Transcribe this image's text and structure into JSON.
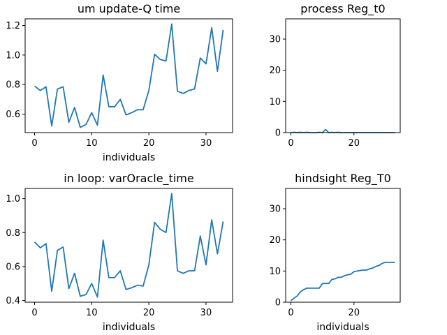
{
  "chart_data": [
    {
      "type": "line",
      "title": "um update-Q time",
      "xlabel": "individuals",
      "ylabel": "",
      "xlim": [
        -1.65,
        34.65
      ],
      "ylim": [
        0.475,
        1.245
      ],
      "xticks": [
        0,
        10,
        20,
        30
      ],
      "yticks": [
        0.6,
        0.8,
        1.0,
        1.2
      ],
      "ytick_labels": [
        "0.6",
        "0.8",
        "1.0",
        "1.2"
      ],
      "grid": false,
      "color": "#1f77b4",
      "series": [
        {
          "x": [
            0,
            1,
            2,
            3,
            4,
            5,
            6,
            7,
            8,
            9,
            10,
            11,
            12,
            13,
            14,
            15,
            16,
            17,
            18,
            19,
            20,
            21,
            22,
            23,
            24,
            25,
            26,
            27,
            28,
            29,
            30,
            31,
            32,
            33
          ],
          "values": [
            0.79,
            0.76,
            0.785,
            0.52,
            0.77,
            0.785,
            0.545,
            0.645,
            0.51,
            0.53,
            0.61,
            0.525,
            0.865,
            0.65,
            0.65,
            0.7,
            0.595,
            0.61,
            0.63,
            0.63,
            0.76,
            1.005,
            0.97,
            0.96,
            1.21,
            0.755,
            0.74,
            0.76,
            0.77,
            0.98,
            0.94,
            1.185,
            0.89,
            1.17
          ]
        }
      ]
    },
    {
      "type": "line",
      "title": "process Reg_t0",
      "xlabel": "",
      "ylabel": "",
      "xlim": [
        -1.65,
        34.65
      ],
      "ylim": [
        0,
        36.5
      ],
      "xticks": [
        0,
        20
      ],
      "yticks": [
        0,
        10,
        20,
        30
      ],
      "ytick_labels": [
        "0",
        "10",
        "20",
        "30"
      ],
      "grid": false,
      "color": "#1f77b4",
      "series": [
        {
          "x": [
            0,
            1,
            2,
            3,
            4,
            5,
            6,
            7,
            8,
            9,
            10,
            11,
            12,
            13,
            14,
            15,
            16,
            17,
            18,
            19,
            20,
            21,
            22,
            23,
            24,
            25,
            26,
            27,
            28,
            29,
            30,
            31,
            32,
            33
          ],
          "values": [
            0,
            0.1,
            0,
            0.1,
            0,
            0.1,
            0,
            0,
            0,
            0.1,
            0,
            1.0,
            0,
            0.1,
            0,
            0.1,
            0,
            0,
            0,
            0,
            0,
            0,
            0,
            0,
            0,
            0,
            0,
            0,
            0,
            0,
            0,
            0,
            0,
            0
          ]
        }
      ]
    },
    {
      "type": "line",
      "title": "in loop: varOracle_time",
      "xlabel": "individuals",
      "ylabel": "",
      "xlim": [
        -1.65,
        34.65
      ],
      "ylim": [
        0.39,
        1.06
      ],
      "xticks": [
        0,
        10,
        20,
        30
      ],
      "yticks": [
        0.4,
        0.6,
        0.8,
        1.0
      ],
      "ytick_labels": [
        "0.4",
        "0.6",
        "0.8",
        "1.0"
      ],
      "grid": false,
      "color": "#1f77b4",
      "series": [
        {
          "x": [
            0,
            1,
            2,
            3,
            4,
            5,
            6,
            7,
            8,
            9,
            10,
            11,
            12,
            13,
            14,
            15,
            16,
            17,
            18,
            19,
            20,
            21,
            22,
            23,
            24,
            25,
            26,
            27,
            28,
            29,
            30,
            31,
            32,
            33
          ],
          "values": [
            0.745,
            0.71,
            0.735,
            0.455,
            0.695,
            0.715,
            0.47,
            0.56,
            0.425,
            0.435,
            0.5,
            0.42,
            0.755,
            0.535,
            0.535,
            0.575,
            0.465,
            0.475,
            0.49,
            0.485,
            0.61,
            0.86,
            0.82,
            0.8,
            1.03,
            0.575,
            0.56,
            0.575,
            0.575,
            0.78,
            0.61,
            0.875,
            0.675,
            0.865
          ]
        }
      ]
    },
    {
      "type": "line",
      "title": "hindsight Reg_T0",
      "xlabel": "individuals",
      "ylabel": "",
      "xlim": [
        -1.65,
        34.65
      ],
      "ylim": [
        0,
        36.5
      ],
      "xticks": [
        0,
        20
      ],
      "yticks": [
        0,
        10,
        20,
        30
      ],
      "ytick_labels": [
        "0",
        "10",
        "20",
        "30"
      ],
      "grid": false,
      "color": "#1f77b4",
      "series": [
        {
          "x": [
            0,
            1,
            2,
            3,
            4,
            5,
            6,
            7,
            8,
            9,
            10,
            11,
            12,
            13,
            14,
            15,
            16,
            17,
            18,
            19,
            20,
            21,
            22,
            23,
            24,
            25,
            26,
            27,
            28,
            29,
            30,
            31,
            32,
            33
          ],
          "values": [
            0.5,
            1.3,
            2.0,
            3.3,
            4.0,
            4.5,
            4.5,
            4.5,
            4.5,
            4.5,
            6.0,
            6.0,
            6.0,
            7.3,
            7.5,
            8.0,
            8.0,
            8.5,
            8.8,
            9.0,
            9.8,
            10.0,
            10.2,
            10.3,
            10.3,
            10.7,
            11.0,
            11.5,
            11.8,
            12.5,
            12.8,
            12.8,
            12.8,
            12.8
          ]
        }
      ]
    }
  ]
}
